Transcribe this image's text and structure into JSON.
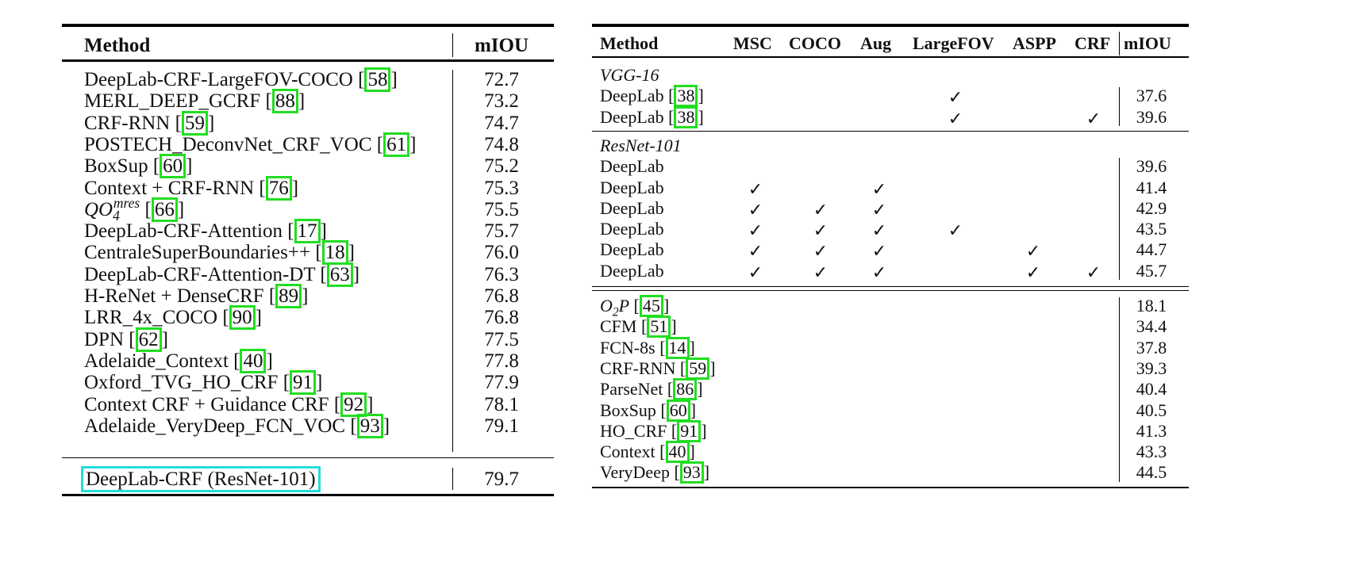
{
  "left": {
    "headers": [
      "Method",
      "mIOU"
    ],
    "rows": [
      {
        "name": "DeepLab-CRF-LargeFOV-COCO",
        "cite": "58",
        "miou": "72.7"
      },
      {
        "name": "MERL_DEEP_GCRF",
        "cite": "88",
        "miou": "73.2"
      },
      {
        "name": "CRF-RNN",
        "cite": "59",
        "miou": "74.7"
      },
      {
        "name": "POSTECH_DeconvNet_CRF_VOC",
        "cite": "61",
        "miou": "74.8"
      },
      {
        "name": "BoxSup",
        "cite": "60",
        "miou": "75.2"
      },
      {
        "name": "Context + CRF-RNN",
        "cite": "76",
        "miou": "75.3"
      },
      {
        "name": "QO",
        "sub": "4",
        "sup": "mres",
        "cite": "66",
        "miou": "75.5"
      },
      {
        "name": "DeepLab-CRF-Attention",
        "cite": "17",
        "miou": "75.7"
      },
      {
        "name": "CentraleSuperBoundaries++",
        "cite": "18",
        "miou": "76.0"
      },
      {
        "name": "DeepLab-CRF-Attention-DT",
        "cite": "63",
        "miou": "76.3"
      },
      {
        "name": "H-ReNet + DenseCRF",
        "cite": "89",
        "miou": "76.8"
      },
      {
        "name": "LRR_4x_COCO",
        "cite": "90",
        "miou": "76.8"
      },
      {
        "name": "DPN",
        "cite": "62",
        "miou": "77.5"
      },
      {
        "name": "Adelaide_Context",
        "cite": "40",
        "miou": "77.8"
      },
      {
        "name": "Oxford_TVG_HO_CRF",
        "cite": "91",
        "miou": "77.9"
      },
      {
        "name": "Context CRF + Guidance CRF",
        "cite": "92",
        "miou": "78.1"
      },
      {
        "name": "Adelaide_VeryDeep_FCN_VOC",
        "cite": "93",
        "miou": "79.1"
      }
    ],
    "final": {
      "name": "DeepLab-CRF (ResNet-101)",
      "miou": "79.7"
    }
  },
  "right": {
    "headers": [
      "Method",
      "MSC",
      "COCO",
      "Aug",
      "LargeFOV",
      "ASPP",
      "CRF",
      "mIOU"
    ],
    "check_symbol": "✓",
    "groups": [
      {
        "title": "VGG-16",
        "rows": [
          {
            "name": "DeepLab",
            "cite": "38",
            "flags": [
              0,
              0,
              0,
              1,
              0,
              0
            ],
            "miou": "37.6"
          },
          {
            "name": "DeepLab",
            "cite": "38",
            "flags": [
              0,
              0,
              0,
              1,
              0,
              1
            ],
            "miou": "39.6"
          }
        ]
      },
      {
        "title": "ResNet-101",
        "rows": [
          {
            "name": "DeepLab",
            "cite": "",
            "flags": [
              0,
              0,
              0,
              0,
              0,
              0
            ],
            "miou": "39.6"
          },
          {
            "name": "DeepLab",
            "cite": "",
            "flags": [
              1,
              0,
              1,
              0,
              0,
              0
            ],
            "miou": "41.4"
          },
          {
            "name": "DeepLab",
            "cite": "",
            "flags": [
              1,
              1,
              1,
              0,
              0,
              0
            ],
            "miou": "42.9"
          },
          {
            "name": "DeepLab",
            "cite": "",
            "flags": [
              1,
              1,
              1,
              1,
              0,
              0
            ],
            "miou": "43.5"
          },
          {
            "name": "DeepLab",
            "cite": "",
            "flags": [
              1,
              1,
              1,
              0,
              1,
              0
            ],
            "miou": "44.7"
          },
          {
            "name": "DeepLab",
            "cite": "",
            "flags": [
              1,
              1,
              1,
              0,
              1,
              1
            ],
            "miou": "45.7"
          }
        ]
      }
    ],
    "others": [
      {
        "name": "O",
        "sub": "2",
        "tail": "P",
        "cite": "45",
        "miou": "18.1"
      },
      {
        "name": "CFM",
        "cite": "51",
        "miou": "34.4"
      },
      {
        "name": "FCN-8s",
        "cite": "14",
        "miou": "37.8"
      },
      {
        "name": "CRF-RNN",
        "cite": "59",
        "miou": "39.3"
      },
      {
        "name": "ParseNet",
        "cite": "86",
        "miou": "40.4"
      },
      {
        "name": "BoxSup",
        "cite": "60",
        "miou": "40.5"
      },
      {
        "name": "HO_CRF",
        "cite": "91",
        "miou": "41.3"
      },
      {
        "name": "Context",
        "cite": "40",
        "miou": "43.3"
      },
      {
        "name": "VeryDeep",
        "cite": "93",
        "miou": "44.5"
      }
    ]
  }
}
